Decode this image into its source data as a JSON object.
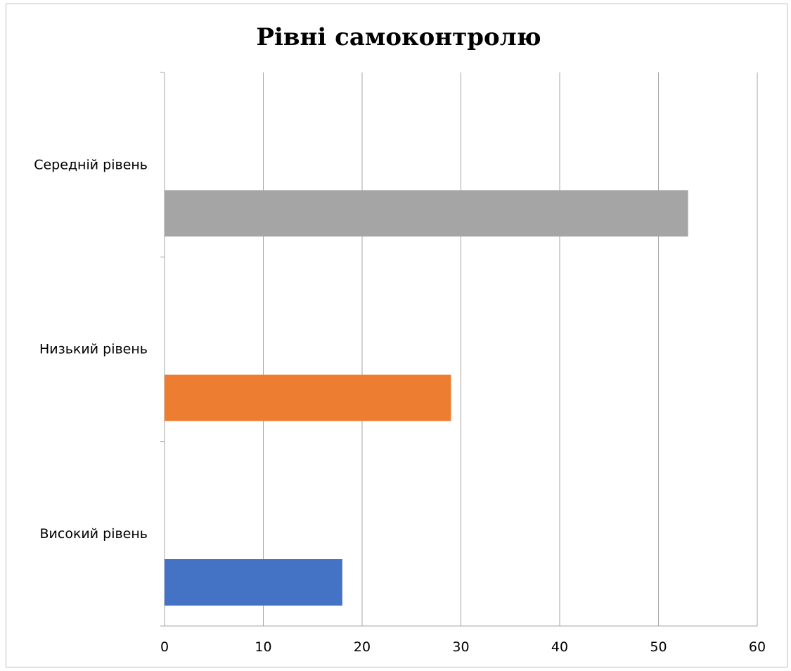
{
  "chart_data": {
    "type": "bar",
    "orientation": "horizontal",
    "title": "Рівні самоконтролю",
    "categories": [
      "Високий рівень",
      "Низький рівень",
      "Середній рівень"
    ],
    "series": [
      {
        "values": [
          18,
          29,
          53
        ],
        "colors": [
          "#4472c4",
          "#ed7d31",
          "#a5a5a5"
        ]
      }
    ],
    "xlim": [
      0,
      60
    ],
    "xticks": [
      "0",
      "10",
      "20",
      "30",
      "40",
      "50",
      "60"
    ],
    "grid": true,
    "legend": "none"
  }
}
